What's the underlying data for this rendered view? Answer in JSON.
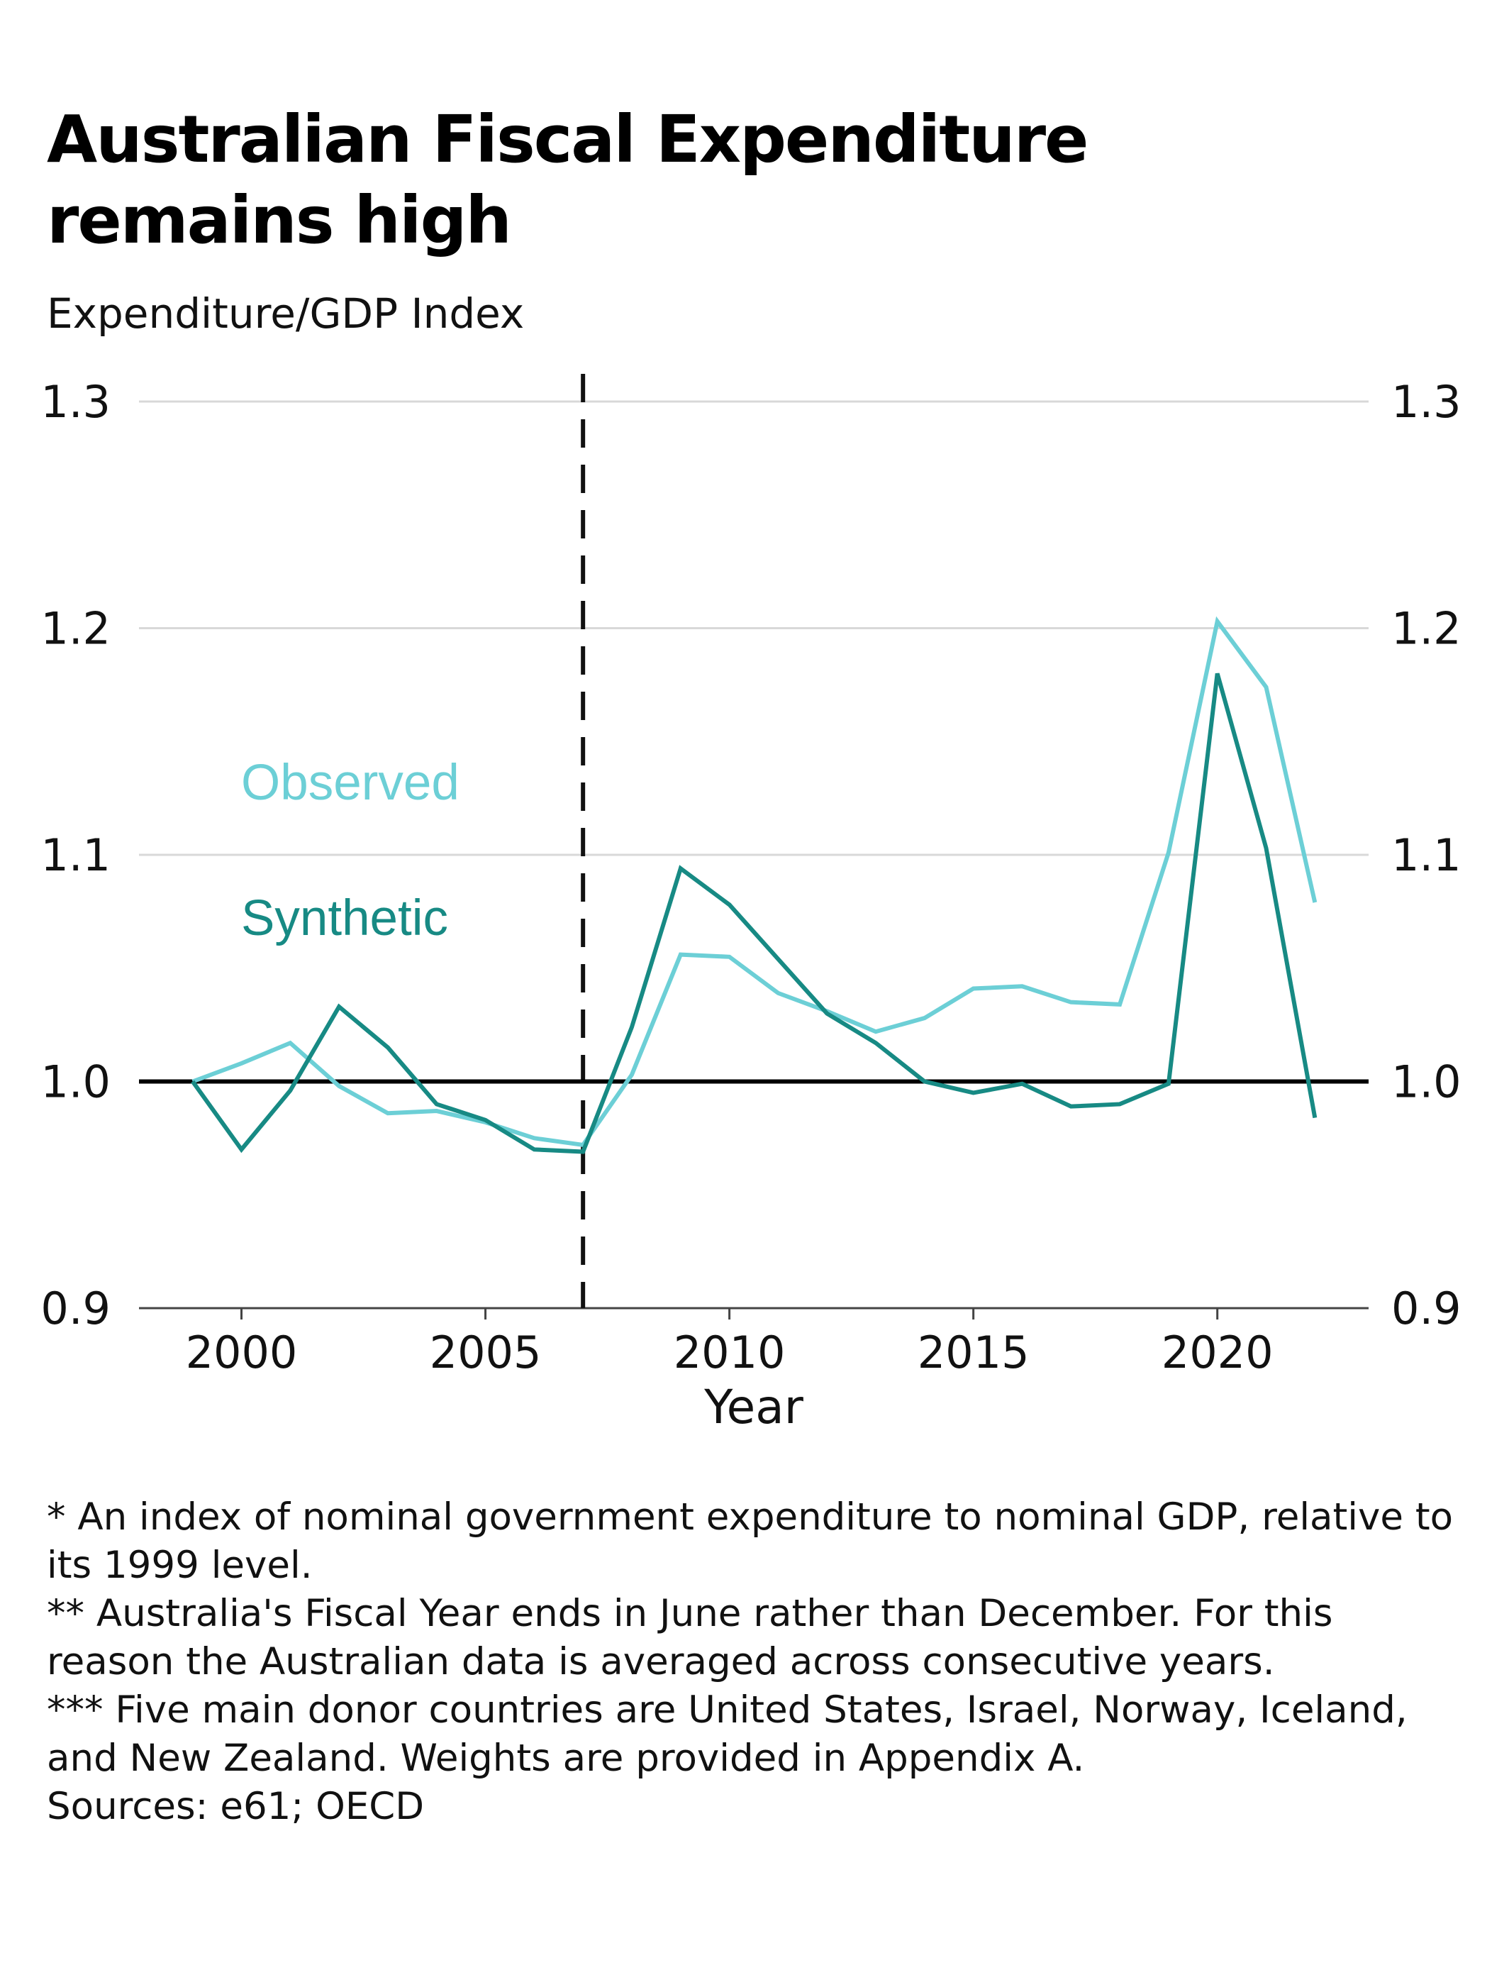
{
  "title_line1": "Australian Fiscal Expenditure",
  "title_line2": "remains high",
  "subtitle": "Expenditure/GDP Index",
  "chart_data": {
    "type": "line",
    "xlabel": "Year",
    "ylabel": "Expenditure/GDP Index",
    "xlim": [
      1997.9,
      2023.1
    ],
    "ylim": [
      0.9,
      1.3
    ],
    "x_ticks": [
      "2000",
      "2005",
      "2010",
      "2015",
      "2020"
    ],
    "y_ticks": [
      "0.9",
      "1.0",
      "1.1",
      "1.2",
      "1.3"
    ],
    "grid": true,
    "reference_line_y": 1.0,
    "event_line_x": 2007,
    "x": [
      1999,
      2000,
      2001,
      2002,
      2003,
      2004,
      2005,
      2006,
      2007,
      2008,
      2009,
      2010,
      2011,
      2012,
      2013,
      2014,
      2015,
      2016,
      2017,
      2018,
      2019,
      2020,
      2021,
      2022
    ],
    "series": [
      {
        "name": "Observed",
        "color": "#6ccfd6",
        "values": [
          1.0,
          1.008,
          1.017,
          0.998,
          0.986,
          0.987,
          0.982,
          0.975,
          0.972,
          1.003,
          1.056,
          1.055,
          1.039,
          1.031,
          1.022,
          1.028,
          1.041,
          1.042,
          1.035,
          1.034,
          1.101,
          1.203,
          1.174,
          1.079
        ]
      },
      {
        "name": "Synthetic",
        "color": "#178a84",
        "values": [
          1.0,
          0.97,
          0.996,
          1.033,
          1.015,
          0.99,
          0.983,
          0.97,
          0.969,
          1.024,
          1.094,
          1.078,
          1.054,
          1.03,
          1.017,
          1.0,
          0.995,
          0.999,
          0.989,
          0.99,
          0.999,
          1.18,
          1.103,
          0.984
        ]
      }
    ]
  },
  "notes": [
    "* An index of nominal government expenditure to nominal GDP, relative to its 1999 level.",
    "** Australia's Fiscal Year ends in June rather than December. For this reason the Australian data is averaged across consecutive years.",
    "*** Five main donor countries are United States, Israel, Norway, Iceland, and New Zealand. Weights are provided in Appendix A.",
    "Sources: e61; OECD"
  ]
}
